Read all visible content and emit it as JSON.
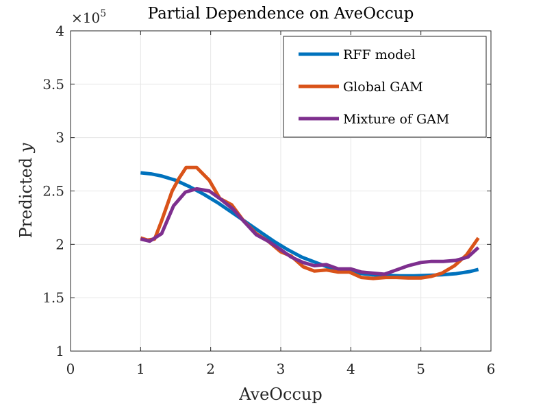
{
  "chart_data": {
    "type": "line",
    "title": "Partial Dependence on AveOccup",
    "xlabel": "AveOccup",
    "ylabel_text": "Predicted",
    "ylabel_var": "y",
    "y_exponent_label": "×10",
    "y_exponent_power": "5",
    "xlim": [
      0,
      6
    ],
    "ylim": [
      1,
      4
    ],
    "xticks": [
      0,
      1,
      2,
      3,
      4,
      5,
      6
    ],
    "xtick_labels": [
      "0",
      "1",
      "2",
      "3",
      "4",
      "5",
      "6"
    ],
    "yticks": [
      1,
      1.5,
      2,
      2.5,
      3,
      3.5,
      4
    ],
    "ytick_labels": [
      "1",
      "1.5",
      "2",
      "2.5",
      "3",
      "3.5",
      "4"
    ],
    "grid": true,
    "legend_position": "top-right",
    "series": [
      {
        "name": "RFF model",
        "color": "#0072BD",
        "x": [
          1.0,
          1.15,
          1.3,
          1.5,
          1.7,
          1.9,
          2.1,
          2.3,
          2.5,
          2.7,
          2.9,
          3.1,
          3.3,
          3.5,
          3.7,
          3.9,
          4.1,
          4.3,
          4.5,
          4.7,
          4.9,
          5.1,
          5.3,
          5.5,
          5.7,
          5.82
        ],
        "y": [
          2.67,
          2.66,
          2.64,
          2.6,
          2.54,
          2.47,
          2.39,
          2.3,
          2.21,
          2.12,
          2.03,
          1.95,
          1.88,
          1.83,
          1.78,
          1.75,
          1.73,
          1.715,
          1.71,
          1.705,
          1.705,
          1.71,
          1.715,
          1.725,
          1.745,
          1.765
        ]
      },
      {
        "name": "Global GAM",
        "color": "#D95319",
        "x": [
          1.0,
          1.1,
          1.2,
          1.3,
          1.45,
          1.55,
          1.65,
          1.8,
          1.98,
          2.13,
          2.3,
          2.47,
          2.65,
          2.82,
          3.0,
          3.15,
          3.32,
          3.48,
          3.65,
          3.82,
          3.98,
          4.15,
          4.32,
          4.5,
          4.65,
          4.82,
          5.0,
          5.15,
          5.3,
          5.48,
          5.65,
          5.82
        ],
        "y": [
          2.06,
          2.04,
          2.05,
          2.22,
          2.5,
          2.62,
          2.72,
          2.72,
          2.6,
          2.43,
          2.37,
          2.22,
          2.1,
          2.03,
          1.93,
          1.89,
          1.79,
          1.75,
          1.76,
          1.74,
          1.74,
          1.69,
          1.68,
          1.69,
          1.69,
          1.685,
          1.685,
          1.7,
          1.73,
          1.8,
          1.9,
          2.06
        ]
      },
      {
        "name": "Mixture of GAM",
        "color": "#7E2F8E",
        "x": [
          1.0,
          1.13,
          1.3,
          1.47,
          1.64,
          1.8,
          1.98,
          2.15,
          2.32,
          2.48,
          2.65,
          2.82,
          3.0,
          3.15,
          3.32,
          3.48,
          3.65,
          3.82,
          4.0,
          4.15,
          4.32,
          4.48,
          4.65,
          4.82,
          5.0,
          5.15,
          5.32,
          5.5,
          5.67,
          5.82
        ],
        "y": [
          2.05,
          2.03,
          2.1,
          2.36,
          2.49,
          2.52,
          2.5,
          2.42,
          2.33,
          2.21,
          2.09,
          2.03,
          1.95,
          1.88,
          1.83,
          1.8,
          1.81,
          1.77,
          1.77,
          1.74,
          1.73,
          1.72,
          1.76,
          1.8,
          1.83,
          1.84,
          1.84,
          1.85,
          1.88,
          1.97
        ]
      }
    ]
  }
}
